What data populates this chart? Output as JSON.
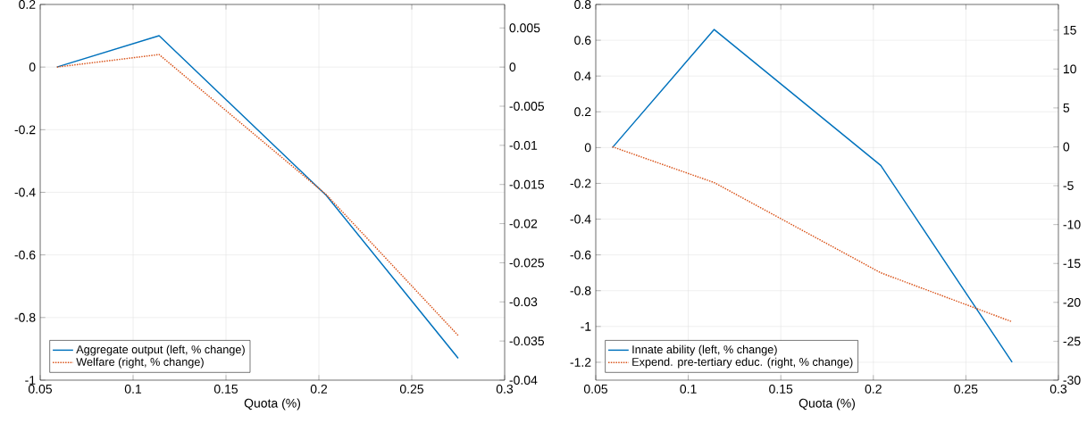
{
  "chart_data": [
    {
      "type": "line",
      "xlabel": "Quota (%)",
      "x": [
        0.059,
        0.114,
        0.204,
        0.275
      ],
      "xlim": [
        0.05,
        0.3
      ],
      "xticks": [
        0.05,
        0.1,
        0.15,
        0.2,
        0.25,
        0.3
      ],
      "ylim": [
        -1,
        0.2
      ],
      "yticks": [
        -1,
        -0.8,
        -0.6,
        -0.4,
        -0.2,
        0,
        0.2
      ],
      "y2lim": [
        -0.04,
        0.008
      ],
      "y2ticks": [
        -0.04,
        -0.035,
        -0.03,
        -0.025,
        -0.02,
        -0.015,
        -0.01,
        -0.005,
        0,
        0.005
      ],
      "grid": true,
      "legend": "bottom left",
      "series": [
        {
          "name": "Aggregate output (left, % change)",
          "color": "#0072bd",
          "line_style": "solid",
          "values": [
            0,
            0.1,
            -0.41,
            -0.93
          ]
        },
        {
          "name": "Welfare (right, % change)",
          "color": "#d95319",
          "line_style": "dotted",
          "axis": "y2",
          "values": [
            0,
            0.0016,
            -0.0163,
            -0.0343
          ]
        }
      ]
    },
    {
      "type": "line",
      "xlabel": "Quota (%)",
      "x": [
        0.059,
        0.114,
        0.204,
        0.275
      ],
      "xlim": [
        0.05,
        0.3
      ],
      "xticks": [
        0.05,
        0.1,
        0.15,
        0.2,
        0.25,
        0.3
      ],
      "ylim": [
        -1.3,
        0.8
      ],
      "yticks": [
        -1.2,
        -1,
        -0.8,
        -0.6,
        -0.4,
        -0.2,
        0,
        0.2,
        0.4,
        0.6,
        0.8
      ],
      "y2lim": [
        -30,
        18.3
      ],
      "y2ticks": [
        -30,
        -25,
        -20,
        -15,
        -10,
        -5,
        0,
        5,
        10,
        15
      ],
      "grid": true,
      "legend": "bottom left",
      "series": [
        {
          "name": "Innate ability (left, % change)",
          "color": "#0072bd",
          "line_style": "solid",
          "values": [
            0,
            0.66,
            -0.1,
            -1.2
          ]
        },
        {
          "name": "Expend. pre-tertiary educ. (right, % change)",
          "color": "#d95319",
          "line_style": "dotted",
          "axis": "y2",
          "values": [
            0,
            -4.6,
            -16.2,
            -22.5
          ]
        }
      ]
    }
  ]
}
